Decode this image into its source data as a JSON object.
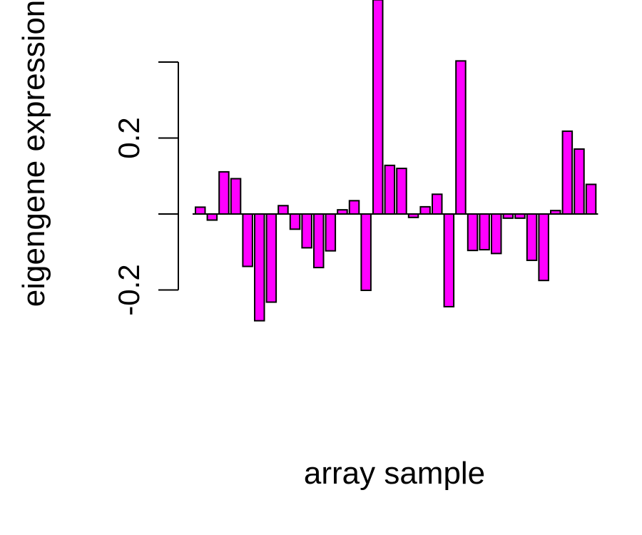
{
  "chart_data": {
    "type": "bar",
    "title": "",
    "xlabel": "array sample",
    "ylabel": "eigengene expression",
    "ylim": [
      -0.25,
      0.55
    ],
    "y_ticks": [
      -0.2,
      0.2
    ],
    "y_tick_labels": [
      "-0.2",
      "0.2"
    ],
    "bar_fill": "#ff00ff",
    "bar_stroke": "#000000",
    "grid": false,
    "values": [
      0.018,
      -0.016,
      0.111,
      0.093,
      -0.138,
      -0.281,
      -0.232,
      0.022,
      -0.04,
      -0.089,
      -0.141,
      -0.097,
      0.011,
      0.035,
      -0.201,
      0.564,
      0.128,
      0.12,
      -0.009,
      0.019,
      0.052,
      -0.244,
      0.403,
      -0.096,
      -0.094,
      -0.104,
      -0.011,
      -0.011,
      -0.122,
      -0.175,
      0.009,
      0.218,
      0.171,
      0.078
    ]
  }
}
